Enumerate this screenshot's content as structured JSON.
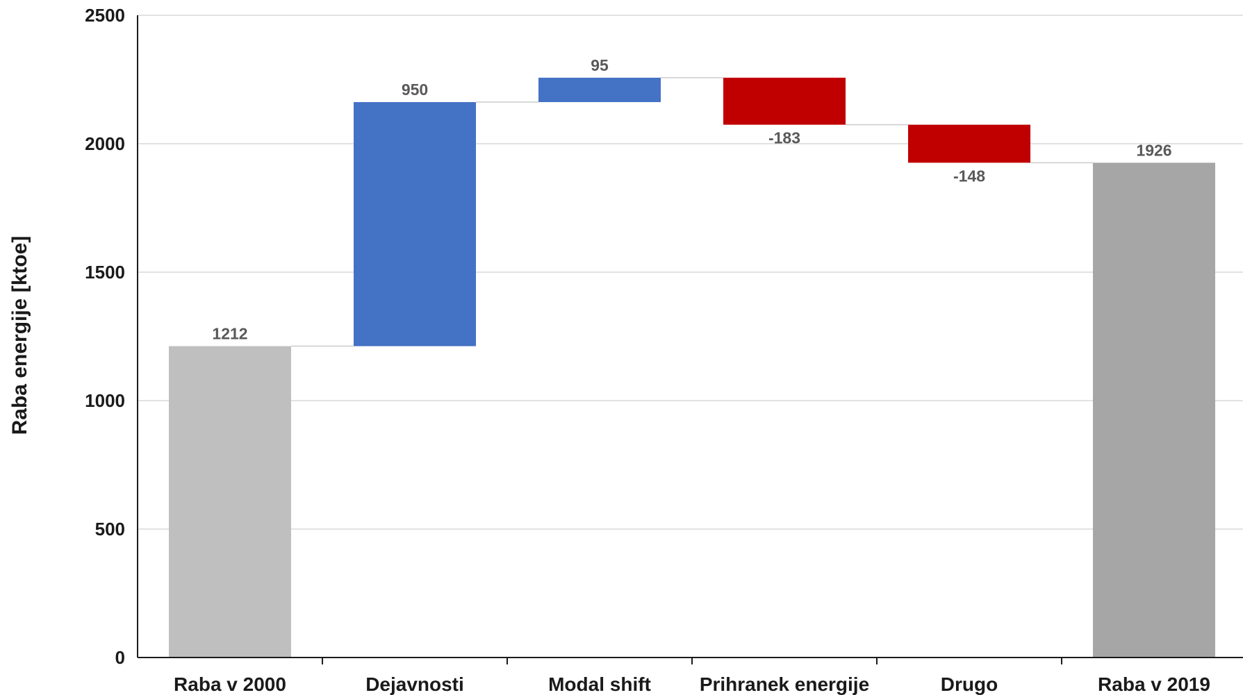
{
  "chart_data": {
    "type": "bar",
    "subtype": "waterfall",
    "title": "",
    "xlabel": "",
    "ylabel": "Raba energije [ktoe]",
    "ylim": [
      0,
      2500
    ],
    "yticks": [
      0,
      500,
      1000,
      1500,
      2000,
      2500
    ],
    "grid": true,
    "legend": "none",
    "categories": [
      "Raba v 2000",
      "Dejavnosti",
      "Modal shift",
      "Prihranek energije",
      "Drugo",
      "Raba v 2019"
    ],
    "values": [
      1212,
      950,
      95,
      -183,
      -148,
      1926
    ],
    "data_labels": [
      "1212",
      "950",
      "95",
      "-183",
      "-148",
      "1926"
    ],
    "bar_roles": [
      "total",
      "delta",
      "delta",
      "delta",
      "delta",
      "total"
    ],
    "colors": {
      "start_total": "#bfbfbf",
      "end_total": "#a6a6a6",
      "increase": "#4472c4",
      "decrease": "#c00000",
      "gridline": "#d9d9d9",
      "axis": "#1a1a1a",
      "connector": "#cccccc"
    }
  }
}
